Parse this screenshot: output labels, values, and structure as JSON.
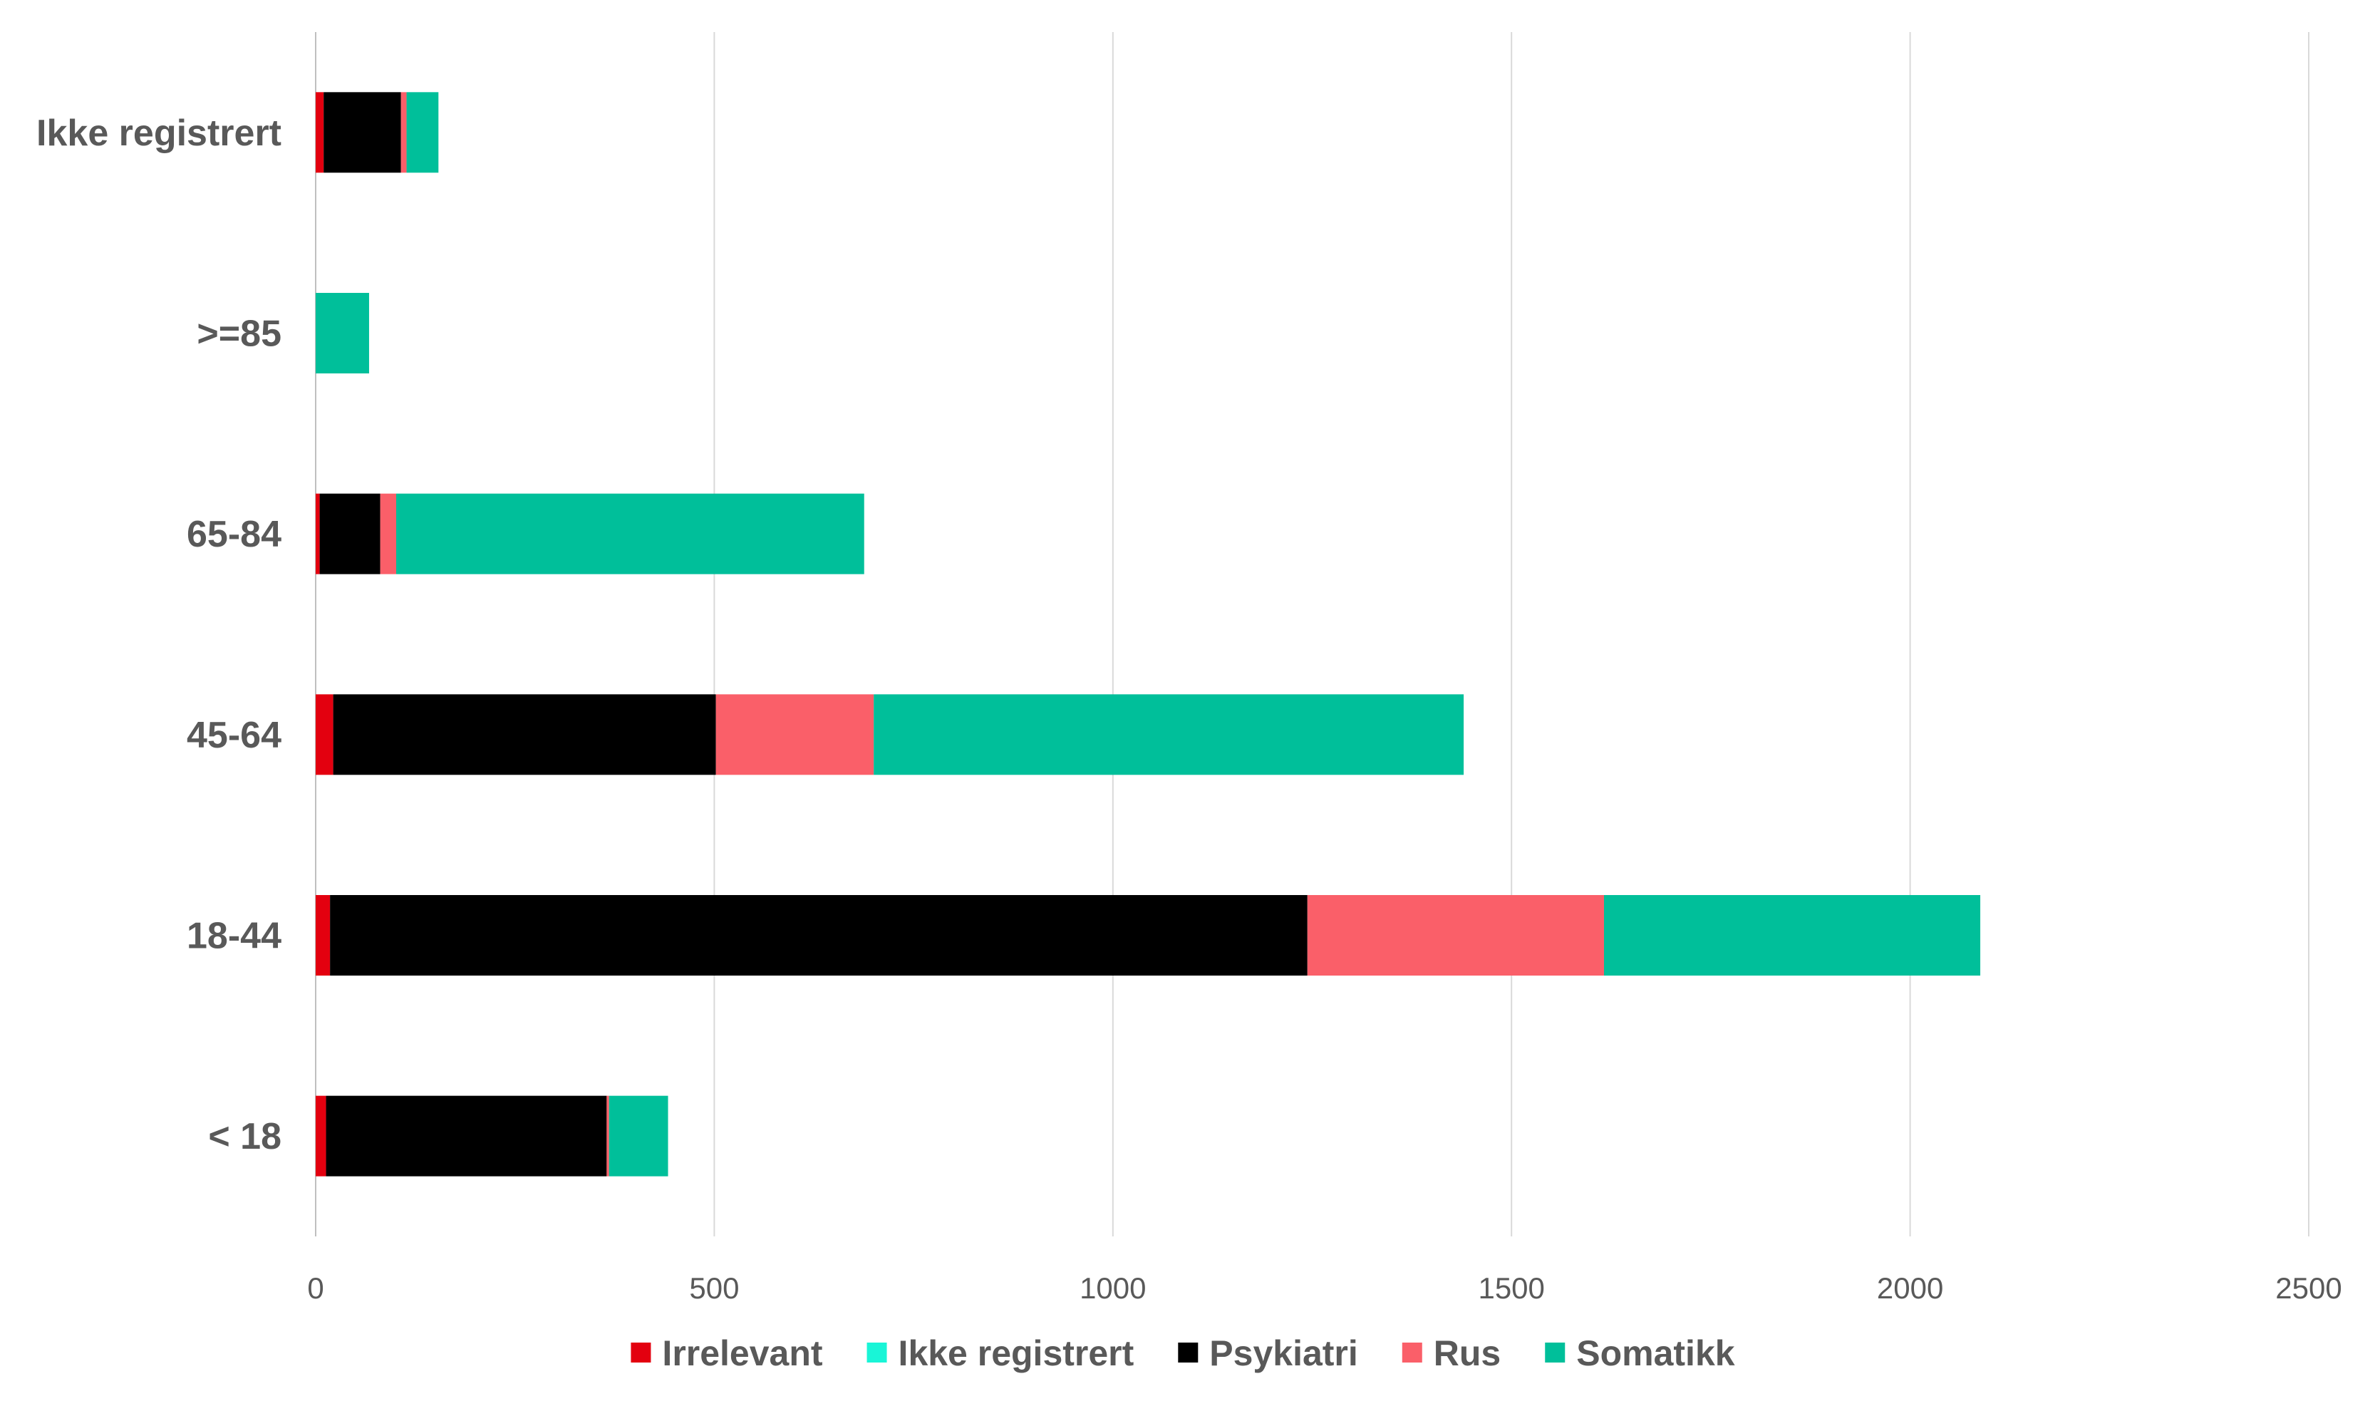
{
  "chart_data": {
    "type": "bar",
    "orientation": "horizontal",
    "stacked": true,
    "title": "",
    "xlabel": "",
    "ylabel": "",
    "xlim": [
      0,
      2500
    ],
    "x_ticks": [
      0,
      500,
      1000,
      1500,
      2000,
      2500
    ],
    "grid": "vertical",
    "legend_position": "bottom",
    "categories": [
      "Ikke registrert",
      ">=85",
      "65-84",
      "45-64",
      "18-44",
      "< 18"
    ],
    "series": [
      {
        "name": "Irrelevant",
        "color": "#e3000f",
        "values": [
          10,
          0,
          5,
          22,
          18,
          13
        ]
      },
      {
        "name": "Ikke registrert",
        "color": "#19f5d7",
        "values": [
          0,
          0,
          0,
          0,
          0,
          0
        ]
      },
      {
        "name": "Psykiatri",
        "color": "#000000",
        "values": [
          97,
          0,
          76,
          480,
          1226,
          352
        ]
      },
      {
        "name": "Rus",
        "color": "#fa5f69",
        "values": [
          7,
          0,
          20,
          198,
          372,
          3
        ]
      },
      {
        "name": "Somatikk",
        "color": "#00bf9a",
        "values": [
          40,
          67,
          587,
          740,
          472,
          74
        ]
      }
    ]
  }
}
